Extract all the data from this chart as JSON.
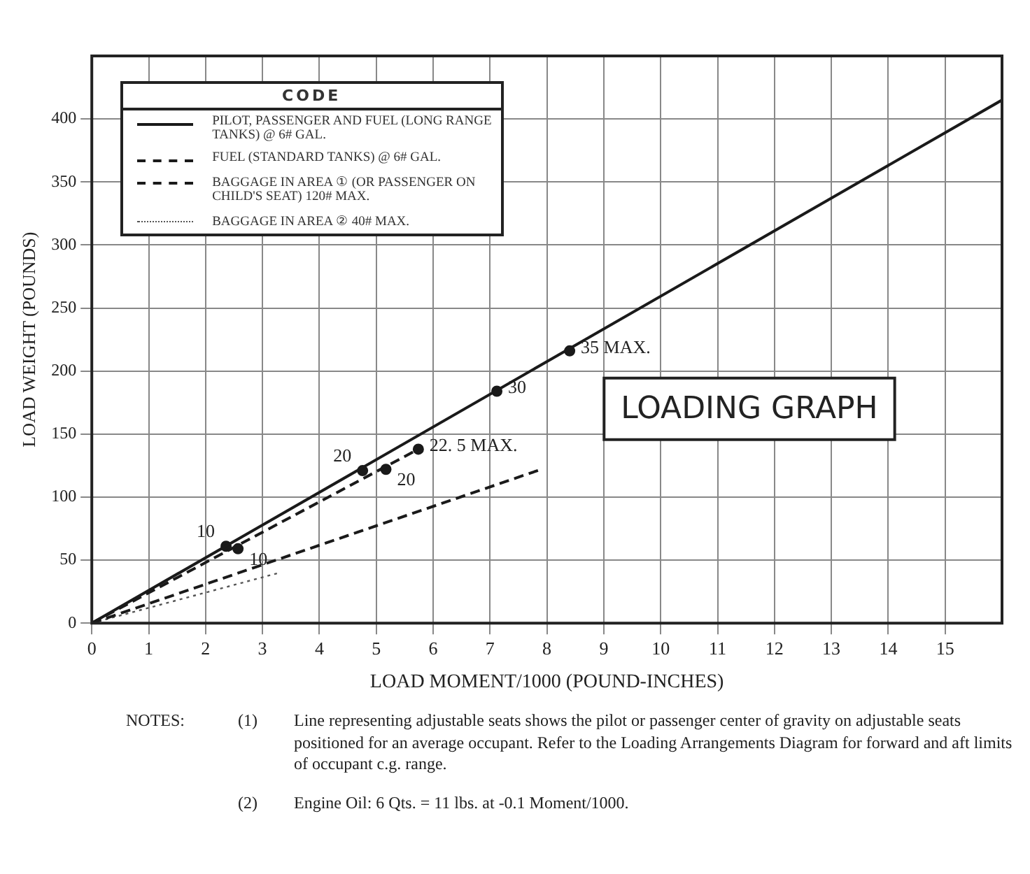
{
  "chart_data": {
    "type": "line",
    "title": "LOADING GRAPH",
    "xlabel": "LOAD MOMENT/1000 (POUND-INCHES)",
    "ylabel": "LOAD WEIGHT (POUNDS)",
    "legend_title": "CODE",
    "legend": "top left",
    "grid": true,
    "xlim": [
      0,
      16
    ],
    "xticks": [
      0,
      1,
      2,
      3,
      4,
      5,
      6,
      7,
      8,
      9,
      10,
      11,
      12,
      13,
      14,
      15
    ],
    "ylim": [
      0,
      450
    ],
    "yticks": [
      0,
      50,
      100,
      150,
      200,
      250,
      300,
      350,
      400
    ],
    "series": [
      {
        "name": "PILOT, PASSENGER AND FUEL (LONG RANGE TANKS) @ 6# GAL.",
        "color": "#1a1a1a",
        "line_style": "solid",
        "marker": "none",
        "x": [
          0,
          16
        ],
        "values": [
          0,
          415
        ]
      },
      {
        "name": "FUEL (STANDARD TANKS) @ 6# GAL.",
        "color": "#1a1a1a",
        "line_style": "dashed",
        "marker": "none",
        "x": [
          0,
          5.74
        ],
        "values": [
          0,
          138
        ]
      },
      {
        "name": "BAGGAGE IN AREA ① (OR PASSENGER ON CHILD'S SEAT) 120# MAX.",
        "color": "#1a1a1a",
        "line_style": "dashed",
        "marker": "none",
        "x": [
          0,
          7.9
        ],
        "values": [
          0,
          122
        ]
      },
      {
        "name": "BAGGAGE IN AREA ② 40# MAX.",
        "color": "#555555",
        "line_style": "dotted",
        "marker": "none",
        "x": [
          0,
          3.3
        ],
        "values": [
          0,
          40
        ]
      },
      {
        "type": "scatter",
        "color": "#1a1a1a",
        "marker": "circle",
        "x": [
          2.36,
          4.76,
          7.12,
          8.4,
          2.57,
          5.17,
          5.74
        ],
        "values": [
          61,
          121,
          184,
          216,
          59,
          122,
          138
        ]
      }
    ],
    "annotations": [
      {
        "text": "10",
        "x": 2.36,
        "y": 61
      },
      {
        "text": "20",
        "x": 4.76,
        "y": 121
      },
      {
        "text": "30",
        "x": 7.12,
        "y": 184
      },
      {
        "text": "35 MAX.",
        "x": 8.4,
        "y": 216
      },
      {
        "text": "10",
        "x": 2.57,
        "y": 59
      },
      {
        "text": "20",
        "x": 5.17,
        "y": 122
      },
      {
        "text": "22. 5 MAX.",
        "x": 5.74,
        "y": 138
      },
      "NOTES:",
      "(1)",
      "Line representing adjustable seats shows the pilot or passenger center of gravity on adjustable seats positioned for an average occupant.  Refer to the Loading Arrangements Diagram for forward and aft limits of occupant c.g. range.",
      "(2)",
      "Engine Oil:  6 Qts. = 11 lbs. at -0.1 Moment/1000."
    ]
  }
}
